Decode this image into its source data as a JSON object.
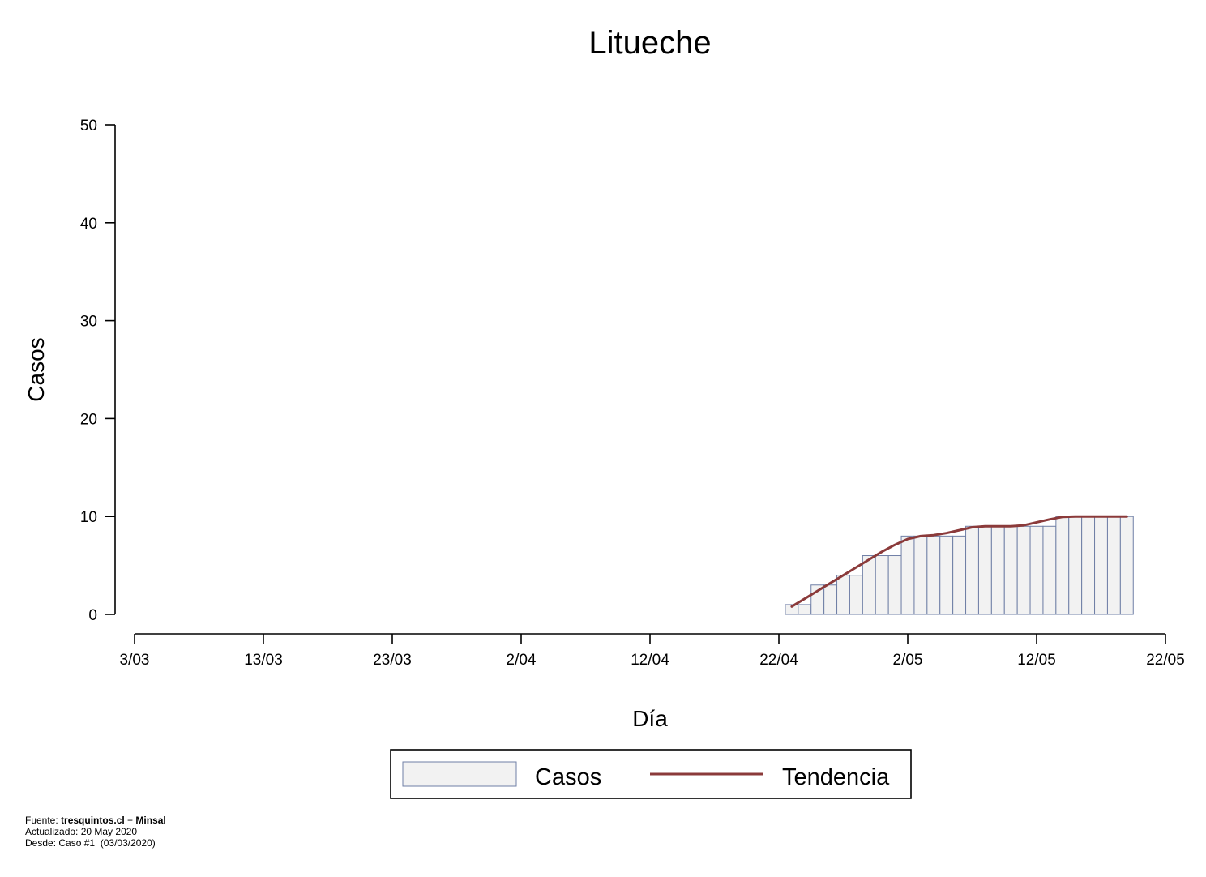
{
  "chart_data": {
    "type": "bar",
    "title": "Litueche",
    "xlabel": "Día",
    "ylabel": "Casos",
    "ylim": [
      0,
      50
    ],
    "yticks": [
      0,
      10,
      20,
      30,
      40,
      50
    ],
    "x_start": "2020-03-03",
    "x_end": "2020-05-22",
    "xticks": [
      {
        "date": "2020-03-03",
        "label": "3/03"
      },
      {
        "date": "2020-03-13",
        "label": "13/03"
      },
      {
        "date": "2020-03-23",
        "label": "23/03"
      },
      {
        "date": "2020-04-02",
        "label": "2/04"
      },
      {
        "date": "2020-04-12",
        "label": "12/04"
      },
      {
        "date": "2020-04-22",
        "label": "22/04"
      },
      {
        "date": "2020-05-02",
        "label": "2/05"
      },
      {
        "date": "2020-05-12",
        "label": "12/05"
      },
      {
        "date": "2020-05-22",
        "label": "22/05"
      }
    ],
    "grid": false,
    "legend_position": "bottom-center",
    "series": [
      {
        "name": "Casos",
        "type": "bar",
        "fill": "#f2f2f2",
        "stroke": "#6f7fa6",
        "dates": [
          "2020-04-23",
          "2020-04-24",
          "2020-04-25",
          "2020-04-26",
          "2020-04-27",
          "2020-04-28",
          "2020-04-29",
          "2020-04-30",
          "2020-05-01",
          "2020-05-02",
          "2020-05-03",
          "2020-05-04",
          "2020-05-05",
          "2020-05-06",
          "2020-05-07",
          "2020-05-08",
          "2020-05-09",
          "2020-05-10",
          "2020-05-11",
          "2020-05-12",
          "2020-05-13",
          "2020-05-14",
          "2020-05-15",
          "2020-05-16",
          "2020-05-17",
          "2020-05-18",
          "2020-05-19"
        ],
        "values": [
          1,
          1,
          3,
          3,
          4,
          4,
          6,
          6,
          6,
          8,
          8,
          8,
          8,
          8,
          9,
          9,
          9,
          9,
          9,
          9,
          9,
          10,
          10,
          10,
          10,
          10,
          10
        ]
      },
      {
        "name": "Tendencia",
        "type": "line",
        "color": "#8b3a3a",
        "dates": [
          "2020-04-23",
          "2020-04-24",
          "2020-04-25",
          "2020-04-26",
          "2020-04-27",
          "2020-04-28",
          "2020-04-29",
          "2020-04-30",
          "2020-05-01",
          "2020-05-02",
          "2020-05-03",
          "2020-05-04",
          "2020-05-05",
          "2020-05-06",
          "2020-05-07",
          "2020-05-08",
          "2020-05-09",
          "2020-05-10",
          "2020-05-11",
          "2020-05-12",
          "2020-05-13",
          "2020-05-14",
          "2020-05-15",
          "2020-05-16",
          "2020-05-17",
          "2020-05-18",
          "2020-05-19"
        ],
        "values": [
          0.8,
          1.6,
          2.4,
          3.2,
          4.0,
          4.8,
          5.6,
          6.4,
          7.1,
          7.7,
          8.0,
          8.1,
          8.3,
          8.6,
          8.9,
          9.0,
          9.0,
          9.0,
          9.1,
          9.4,
          9.7,
          9.95,
          10.0,
          10.0,
          10.0,
          10.0,
          10.0
        ]
      }
    ]
  },
  "legend": {
    "casos_label": "Casos",
    "tendencia_label": "Tendencia"
  },
  "footer": {
    "fuente_prefix": "Fuente: ",
    "fuente_bold1": "tresquintos.cl",
    "fuente_mid": " + ",
    "fuente_bold2": "Minsal",
    "actualizado": "Actualizado: 20 May 2020",
    "desde": "Desde: Caso #1  (03/03/2020)"
  }
}
